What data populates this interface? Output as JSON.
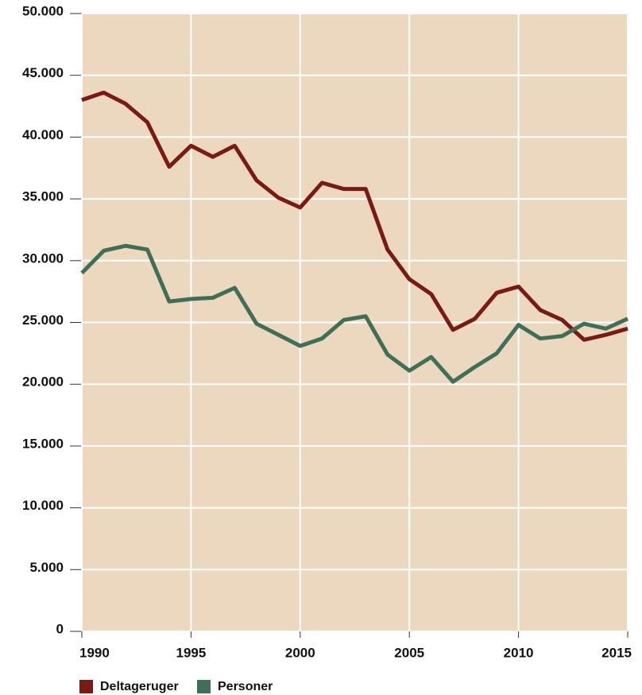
{
  "chart_data": {
    "type": "line",
    "x": [
      1990,
      1991,
      1992,
      1993,
      1994,
      1995,
      1996,
      1997,
      1998,
      1999,
      2000,
      2001,
      2002,
      2003,
      2004,
      2005,
      2006,
      2007,
      2008,
      2009,
      2010,
      2011,
      2012,
      2013,
      2014,
      2015
    ],
    "series": [
      {
        "name": "Deltageruger",
        "color": "#7b1a12",
        "values": [
          43000,
          43600,
          42700,
          41200,
          37600,
          39300,
          38400,
          39300,
          36500,
          35100,
          34300,
          36300,
          35800,
          35800,
          30900,
          28500,
          27300,
          24400,
          25300,
          27400,
          27900,
          26000,
          25200,
          23600,
          24000,
          24500
        ]
      },
      {
        "name": "Personer",
        "color": "#3f6f59",
        "values": [
          29000,
          30800,
          31200,
          30900,
          26700,
          26900,
          27000,
          27800,
          24900,
          24000,
          23100,
          23700,
          25200,
          25500,
          22400,
          21100,
          22200,
          20200,
          21400,
          22500,
          24800,
          23700,
          23900,
          24900,
          24500,
          25300
        ]
      }
    ],
    "xlim": [
      1990,
      2015
    ],
    "xticks": [
      1990,
      1995,
      2000,
      2005,
      2010,
      2015
    ],
    "ylim": [
      0,
      50000
    ],
    "yticks": [
      0,
      {
        "value": 5000,
        "label": "5.000"
      },
      {
        "value": 10000,
        "label": "10.000"
      },
      {
        "value": 15000,
        "label": "15.000"
      },
      {
        "value": 20000,
        "label": "20.000"
      },
      {
        "value": 25000,
        "label": "25.000"
      },
      {
        "value": 30000,
        "label": "30.000"
      },
      {
        "value": 35000,
        "label": "35.000"
      },
      {
        "value": 40000,
        "label": "40.000"
      },
      {
        "value": 45000,
        "label": "45.000"
      },
      {
        "value": 50000,
        "label": "50.000"
      }
    ],
    "grid": true,
    "legend": "bottom",
    "background": "#ecd8bf"
  }
}
